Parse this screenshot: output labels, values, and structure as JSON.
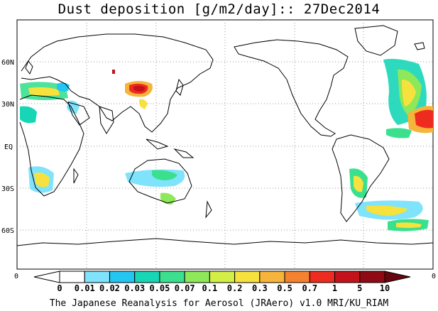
{
  "title": "Dust deposition [g/m2/day]:: 27Dec2014",
  "footer": "The Japanese Reanalysis for Aerosol (JRAero) v1.0 MRI/KU_RIAM",
  "lat_labels": [
    "60N",
    "30N",
    "EQ",
    "30S",
    "60S"
  ],
  "edge_labels": {
    "left": "0",
    "right": "0"
  },
  "colorbar": {
    "levels": [
      "0",
      "0.01",
      "0.02",
      "0.03",
      "0.05",
      "0.07",
      "0.1",
      "0.2",
      "0.3",
      "0.5",
      "0.7",
      "1",
      "5",
      "10"
    ],
    "colors": [
      "#ffffff",
      "#ffffff",
      "#7fe3fb",
      "#23c6f0",
      "#16d6b6",
      "#3be08f",
      "#8de85a",
      "#d3ee45",
      "#f7e23d",
      "#f7b43a",
      "#f5822f",
      "#ee2b1f",
      "#c4121a",
      "#8f0a14",
      "#680610"
    ]
  }
}
